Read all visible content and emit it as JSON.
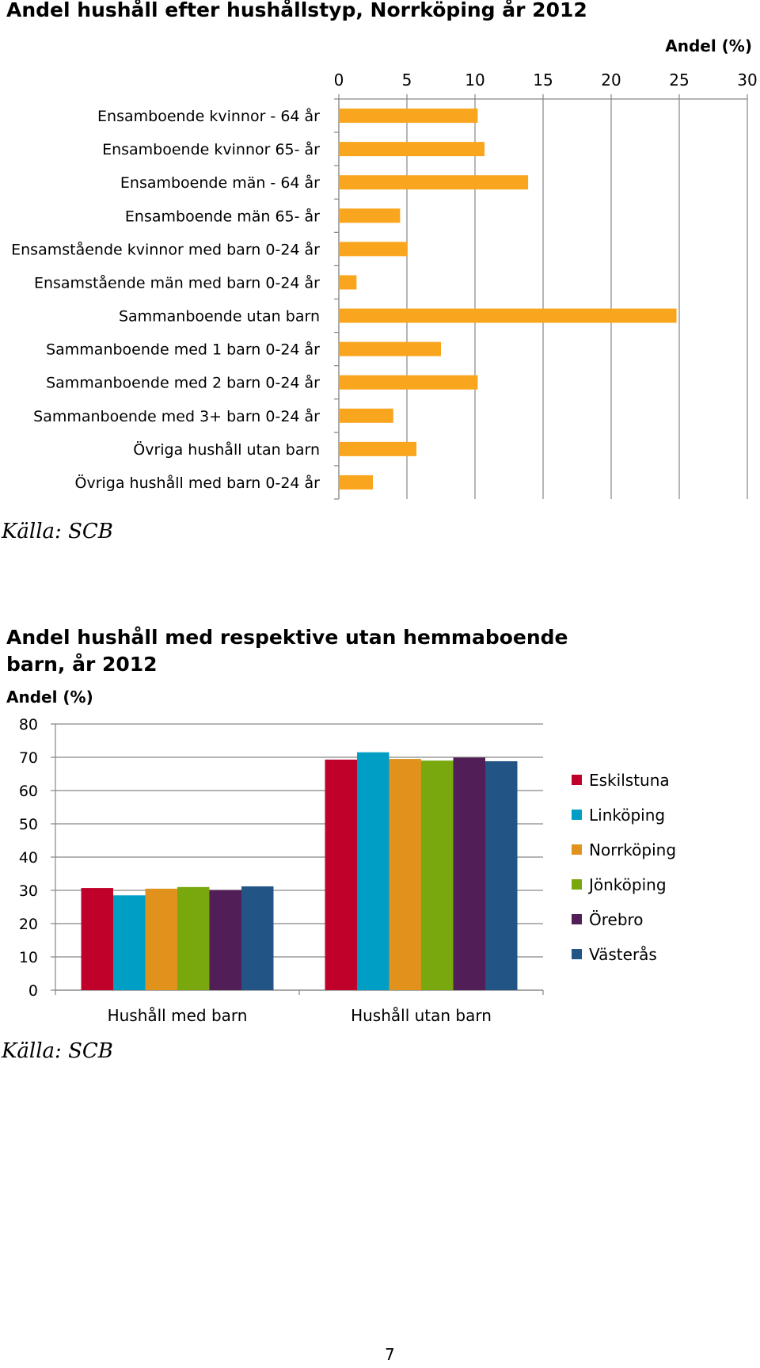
{
  "charts": [
    {
      "title": "Andel hushåll efter hushållstyp, Norrköping år 2012",
      "unit": "Andel (%)",
      "source": "Källa: SCB"
    },
    {
      "title": "Andel hushåll med respektive utan hemmaboende barn, år 2012",
      "unit": "Andel (%)",
      "source": "Källa: SCB"
    }
  ],
  "page_number": "7",
  "chart_data": [
    {
      "type": "bar",
      "orientation": "horizontal",
      "title": "Andel hushåll efter hushållstyp, Norrköping år 2012",
      "xlabel": "Andel (%)",
      "ylabel": "",
      "xlim": [
        0,
        30
      ],
      "xticks": [
        "0",
        "5",
        "10",
        "15",
        "20",
        "25",
        "30"
      ],
      "grid": true,
      "axis_position": "top",
      "color": "#F9A61E",
      "categories": [
        "Ensamboende kvinnor - 64 år",
        "Ensamboende kvinnor 65- år",
        "Ensamboende män - 64 år",
        "Ensamboende män 65- år",
        "Ensamstående kvinnor med barn 0-24 år",
        "Ensamstående män med barn 0-24 år",
        "Sammanboende utan barn",
        "Sammanboende med 1 barn 0-24 år",
        "Sammanboende med 2 barn 0-24 år",
        "Sammanboende med 3+ barn 0-24 år",
        "Övriga hushåll utan barn",
        "Övriga hushåll med barn 0-24 år"
      ],
      "values": [
        10.2,
        10.7,
        13.9,
        4.5,
        5.0,
        1.3,
        24.8,
        7.5,
        10.2,
        4.0,
        5.7,
        2.5
      ]
    },
    {
      "type": "bar",
      "orientation": "vertical",
      "title": "Andel hushåll med respektive utan hemmaboende barn, år 2012",
      "xlabel": "",
      "ylabel": "Andel (%)",
      "ylim": [
        0,
        80
      ],
      "yticks": [
        "0",
        "10",
        "20",
        "30",
        "40",
        "50",
        "60",
        "70",
        "80"
      ],
      "grid": true,
      "legend": "right",
      "categories": [
        "Hushåll med barn",
        "Hushåll utan barn"
      ],
      "series": [
        {
          "name": "Eskilstuna",
          "color": "#C0022A",
          "values": [
            30.7,
            69.3
          ]
        },
        {
          "name": "Linköping",
          "color": "#009DC4",
          "values": [
            28.5,
            71.5
          ]
        },
        {
          "name": "Norrköping",
          "color": "#E0921C",
          "values": [
            30.5,
            69.5
          ]
        },
        {
          "name": "Jönköping",
          "color": "#78A80E",
          "values": [
            31.0,
            69.0
          ]
        },
        {
          "name": "Örebro",
          "color": "#521E58",
          "values": [
            30.1,
            69.9
          ]
        },
        {
          "name": "Västerås",
          "color": "#225485",
          "values": [
            31.2,
            68.8
          ]
        }
      ]
    }
  ]
}
